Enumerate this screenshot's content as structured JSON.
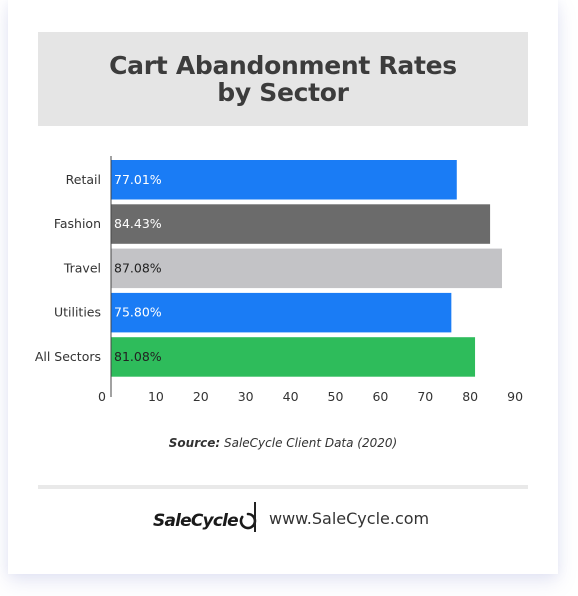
{
  "chart_data": {
    "type": "bar",
    "orientation": "horizontal",
    "title": "Cart Abandonment Rates by Sector",
    "categories": [
      "Retail",
      "Fashion",
      "Travel",
      "Utilities",
      "All Sectors"
    ],
    "values": [
      77.01,
      84.43,
      87.08,
      75.8,
      81.08
    ],
    "value_labels": [
      "77.01%",
      "84.43%",
      "87.08%",
      "75.80%",
      "81.08%"
    ],
    "bar_colors": [
      "#1a7cf5",
      "#6b6b6b",
      "#c3c3c6",
      "#1a7cf5",
      "#2ebc5b"
    ],
    "label_colors": [
      "#ffffff",
      "#ffffff",
      "#222222",
      "#ffffff",
      "#222222"
    ],
    "xlim": [
      0,
      90
    ],
    "xticks": [
      "0",
      "10",
      "20",
      "30",
      "40",
      "50",
      "60",
      "70",
      "80",
      "90"
    ],
    "xlabel": "",
    "ylabel": "",
    "grid": false,
    "legend": "none"
  },
  "source": {
    "prefix": "Source:",
    "text": " SaleCycle Client Data (2020)"
  },
  "footer": {
    "brand": "SaleCycle",
    "logo_icon": "salecycle-cycle-icon",
    "website": "www.SaleCycle.com"
  }
}
